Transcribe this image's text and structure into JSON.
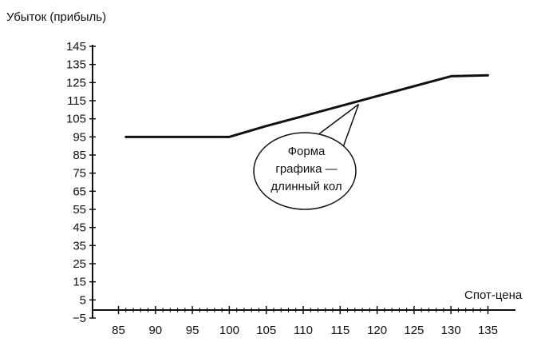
{
  "chart_data": {
    "type": "line",
    "ylabel": "Убыток (прибыль)",
    "xlabel": "Спот-цена",
    "x": [
      86,
      90,
      95,
      100,
      105,
      110,
      115,
      120,
      125,
      130,
      135
    ],
    "series": [
      {
        "values": [
          95,
          95,
          95,
          95,
          101,
          106.5,
          112,
          117.5,
          123,
          128.5,
          129
        ]
      }
    ],
    "x_ticks": [
      "85",
      "90",
      "95",
      "100",
      "105",
      "110",
      "115",
      "120",
      "125",
      "130",
      "135"
    ],
    "y_ticks": [
      "145",
      "135",
      "125",
      "115",
      "105",
      "95",
      "85",
      "75",
      "65",
      "55",
      "45",
      "35",
      "25",
      "15",
      "5",
      "−5"
    ],
    "xlim": [
      83,
      137
    ],
    "ylim": [
      -5,
      145
    ],
    "grid": false,
    "callout": {
      "lines": [
        "Форма",
        "графика —",
        "длинный кол"
      ],
      "target_x": 117.5,
      "target_y": 113
    }
  },
  "colors": {
    "axis": "#111111",
    "line": "#111111",
    "text": "#111111"
  }
}
